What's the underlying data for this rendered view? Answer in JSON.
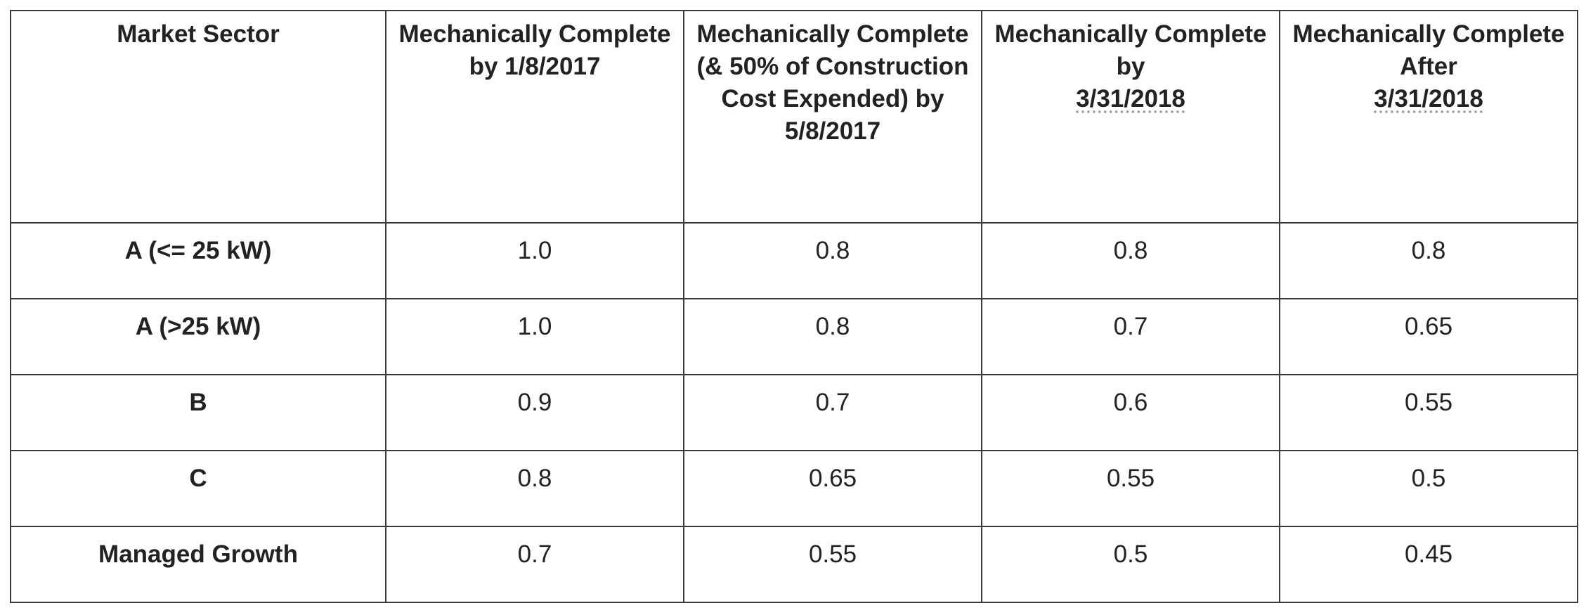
{
  "table": {
    "headers": [
      {
        "line1": "Market Sector",
        "line2": ""
      },
      {
        "line1": "Mechanically Complete by 1/8/2017",
        "line2": ""
      },
      {
        "line1": "Mechanically Complete (& 50% of Construction Cost Expended) by 5/8/2017",
        "line2": ""
      },
      {
        "line1": "Mechanically Complete by",
        "line2": "3/31/2018"
      },
      {
        "line1": "Mechanically Complete After",
        "line2": "3/31/2018"
      }
    ],
    "rows": [
      {
        "sector": "A (<= 25 kW)",
        "values": [
          "1.0",
          "0.8",
          "0.8",
          "0.8"
        ]
      },
      {
        "sector": "A (>25 kW)",
        "values": [
          "1.0",
          "0.8",
          "0.7",
          "0.65"
        ]
      },
      {
        "sector": "B",
        "values": [
          "0.9",
          "0.7",
          "0.6",
          "0.55"
        ]
      },
      {
        "sector": "C",
        "values": [
          "0.8",
          "0.65",
          "0.55",
          "0.5"
        ]
      },
      {
        "sector": "Managed Growth",
        "values": [
          "0.7",
          "0.55",
          "0.5",
          "0.45"
        ]
      }
    ]
  }
}
